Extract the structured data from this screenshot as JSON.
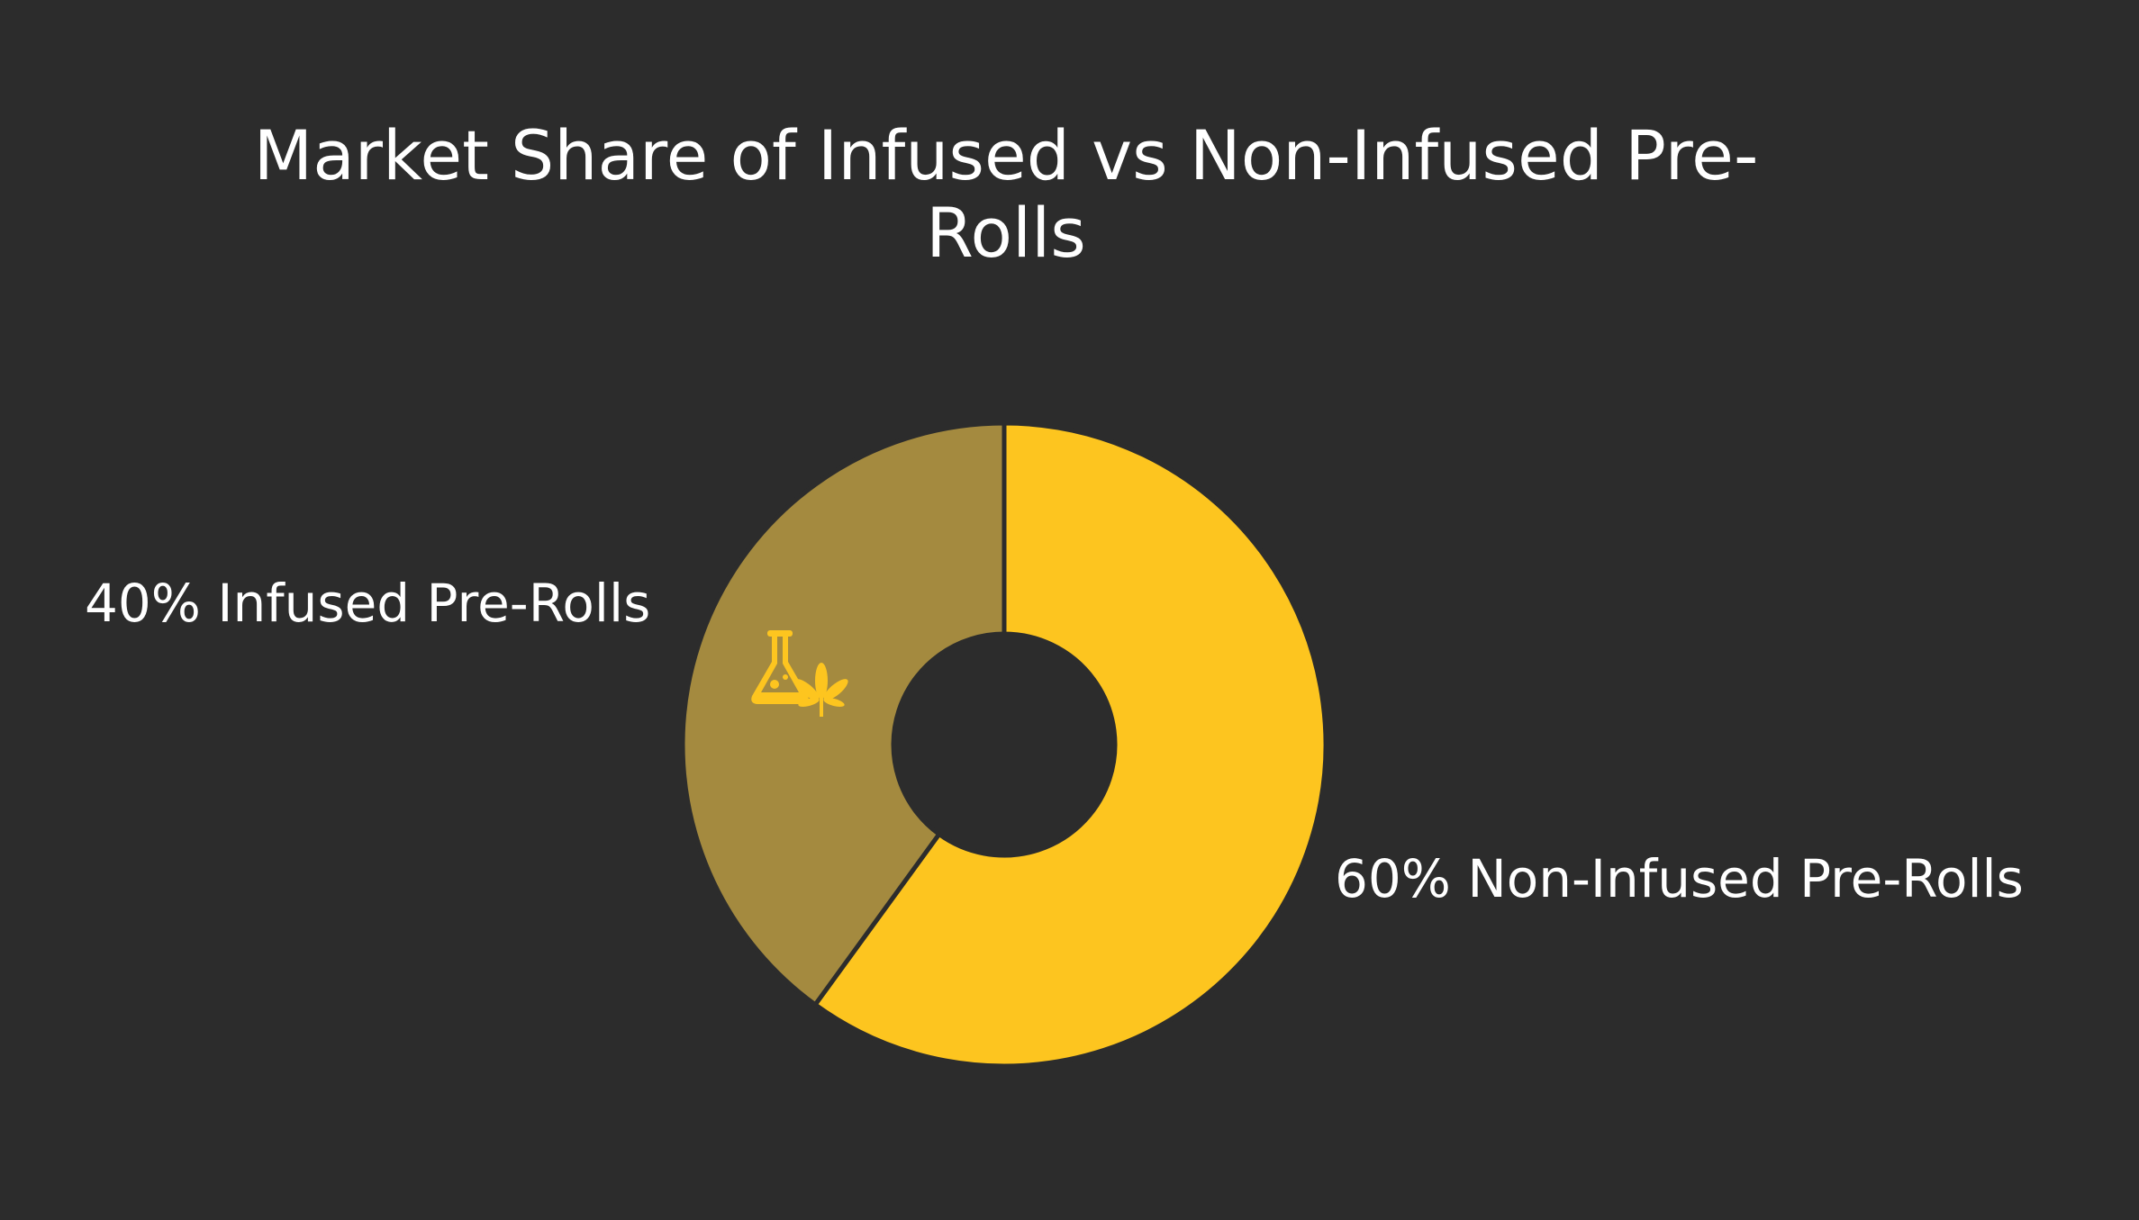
{
  "chart_data": {
    "type": "donut",
    "title": "Market Share of Infused vs Non-Infused Pre-Rolls",
    "categories": [
      "Infused Pre-Rolls",
      "Non-Infused Pre-Rolls"
    ],
    "values": [
      40,
      60
    ],
    "value_labels": [
      "40%",
      "60%"
    ],
    "colors": [
      "#a48a3f",
      "#fdc51f"
    ]
  }
}
